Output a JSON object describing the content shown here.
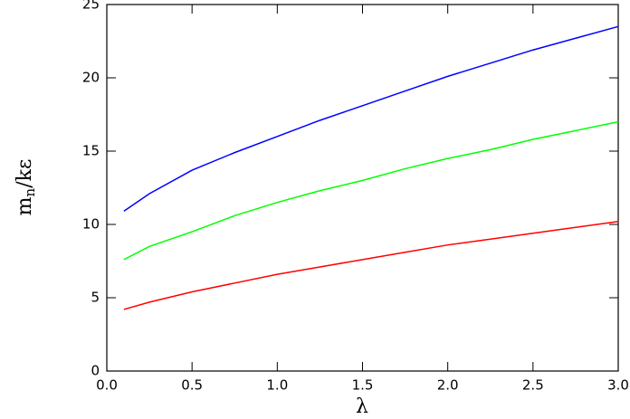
{
  "chart_data": {
    "type": "line",
    "xlabel": "λ",
    "ylabel_parts": [
      "m",
      "n",
      "/kε"
    ],
    "x": [
      0.1,
      0.25,
      0.5,
      0.75,
      1.0,
      1.25,
      1.5,
      1.75,
      2.0,
      2.25,
      2.5,
      2.75,
      3.0
    ],
    "series": [
      {
        "color": "#0000ff",
        "values": [
          10.9,
          12.1,
          13.7,
          14.9,
          16.0,
          17.1,
          18.1,
          19.1,
          20.1,
          21.0,
          21.9,
          22.7,
          23.5
        ]
      },
      {
        "color": "#00ff00",
        "values": [
          7.6,
          8.5,
          9.5,
          10.6,
          11.5,
          12.3,
          13.0,
          13.8,
          14.5,
          15.1,
          15.8,
          16.4,
          17.0
        ]
      },
      {
        "color": "#ff0000",
        "values": [
          4.2,
          4.7,
          5.4,
          6.0,
          6.6,
          7.1,
          7.6,
          8.1,
          8.6,
          9.0,
          9.4,
          9.8,
          10.2
        ]
      }
    ],
    "xlim": [
      0,
      3
    ],
    "xticks": [
      {
        "value": 0,
        "label": "0.0"
      },
      0.5,
      {
        "value": 1,
        "label": "1.0"
      },
      1.5,
      {
        "value": 2,
        "label": "2.0"
      },
      2.5,
      {
        "value": 3,
        "label": "3.0"
      }
    ],
    "ylim": [
      0,
      25
    ],
    "yticks": [
      0,
      5,
      10,
      15,
      20,
      25
    ]
  }
}
